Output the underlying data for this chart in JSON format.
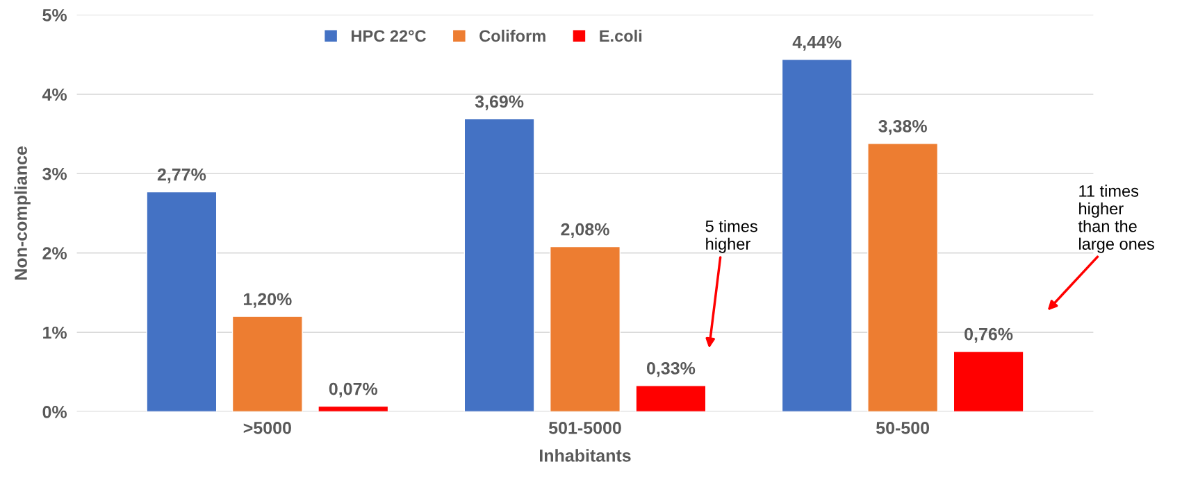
{
  "chart_data": {
    "type": "bar",
    "xlabel": "Inhabitants",
    "ylabel": "Non-compliance",
    "categories": [
      ">5000",
      "501-5000",
      "50-500"
    ],
    "series": [
      {
        "name": "HPC 22°C",
        "color": "#4472c4",
        "values": [
          2.77,
          3.69,
          4.44
        ],
        "value_labels": [
          "2,77%",
          "3,69%",
          "4,44%"
        ]
      },
      {
        "name": "Coliform",
        "color": "#ed7d31",
        "values": [
          1.2,
          2.08,
          3.38
        ],
        "value_labels": [
          "1,20%",
          "2,08%",
          "3,38%"
        ]
      },
      {
        "name": "E.coli",
        "color": "#ff0000",
        "values": [
          0.07,
          0.33,
          0.76
        ],
        "value_labels": [
          "0,07%",
          "0,33%",
          "0,76%"
        ]
      }
    ],
    "ylim": [
      0,
      5
    ],
    "yticks": [
      {
        "value": 0,
        "label": "0%"
      },
      {
        "value": 1,
        "label": "1%"
      },
      {
        "value": 2,
        "label": "2%"
      },
      {
        "value": 3,
        "label": "3%"
      },
      {
        "value": 4,
        "label": "4%"
      },
      {
        "value": 5,
        "label": "5%"
      }
    ],
    "grid": "y",
    "legend": "top",
    "annotations": [
      "5 times\nhigher",
      "11 times\nhigher\nthan the\nlarge ones"
    ]
  }
}
